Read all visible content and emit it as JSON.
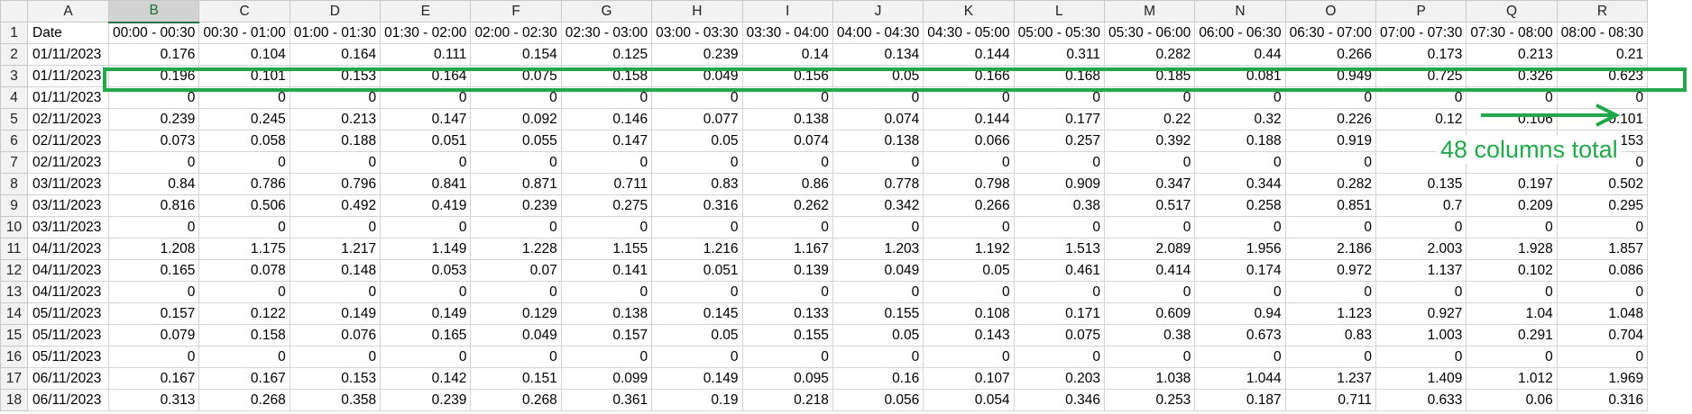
{
  "sheet": {
    "columns": [
      "A",
      "B",
      "C",
      "D",
      "E",
      "F",
      "G",
      "H",
      "I",
      "J",
      "K",
      "L",
      "M",
      "N",
      "O",
      "P",
      "Q",
      "R"
    ],
    "selected_column": "B",
    "header_row": [
      "Date",
      "00:00 - 00:30",
      "00:30 - 01:00",
      "01:00 - 01:30",
      "01:30 - 02:00",
      "02:00 - 02:30",
      "02:30 - 03:00",
      "03:00 - 03:30",
      "03:30 - 04:00",
      "04:00 - 04:30",
      "04:30 - 05:00",
      "05:00 - 05:30",
      "05:30 - 06:00",
      "06:00 - 06:30",
      "06:30 - 07:00",
      "07:00 - 07:30",
      "07:30 - 08:00",
      "08:00 - 08:30"
    ],
    "rows": [
      {
        "num": "2",
        "date": "01/11/2023",
        "values": [
          "0.176",
          "0.104",
          "0.164",
          "0.111",
          "0.154",
          "0.125",
          "0.239",
          "0.14",
          "0.134",
          "0.144",
          "0.311",
          "0.282",
          "0.44",
          "0.266",
          "0.173",
          "0.213",
          "0.21"
        ]
      },
      {
        "num": "3",
        "date": "01/11/2023",
        "values": [
          "0.196",
          "0.101",
          "0.153",
          "0.164",
          "0.075",
          "0.158",
          "0.049",
          "0.156",
          "0.05",
          "0.166",
          "0.168",
          "0.185",
          "0.081",
          "0.949",
          "0.725",
          "0.326",
          "0.623"
        ]
      },
      {
        "num": "4",
        "date": "01/11/2023",
        "values": [
          "0",
          "0",
          "0",
          "0",
          "0",
          "0",
          "0",
          "0",
          "0",
          "0",
          "0",
          "0",
          "0",
          "0",
          "0",
          "0",
          "0"
        ]
      },
      {
        "num": "5",
        "date": "02/11/2023",
        "values": [
          "0.239",
          "0.245",
          "0.213",
          "0.147",
          "0.092",
          "0.146",
          "0.077",
          "0.138",
          "0.074",
          "0.144",
          "0.177",
          "0.22",
          "0.32",
          "0.226",
          "0.12",
          "0.106",
          "0.101"
        ]
      },
      {
        "num": "6",
        "date": "02/11/2023",
        "values": [
          "0.073",
          "0.058",
          "0.188",
          "0.051",
          "0.055",
          "0.147",
          "0.05",
          "0.074",
          "0.138",
          "0.066",
          "0.257",
          "0.392",
          "0.188",
          "0.919",
          "",
          "",
          "0.153"
        ]
      },
      {
        "num": "7",
        "date": "02/11/2023",
        "values": [
          "0",
          "0",
          "0",
          "0",
          "0",
          "0",
          "0",
          "0",
          "0",
          "0",
          "0",
          "0",
          "0",
          "0",
          "",
          "",
          "0"
        ]
      },
      {
        "num": "8",
        "date": "03/11/2023",
        "values": [
          "0.84",
          "0.786",
          "0.796",
          "0.841",
          "0.871",
          "0.711",
          "0.83",
          "0.86",
          "0.778",
          "0.798",
          "0.909",
          "0.347",
          "0.344",
          "0.282",
          "0.135",
          "0.197",
          "0.502"
        ]
      },
      {
        "num": "9",
        "date": "03/11/2023",
        "values": [
          "0.816",
          "0.506",
          "0.492",
          "0.419",
          "0.239",
          "0.275",
          "0.316",
          "0.262",
          "0.342",
          "0.266",
          "0.38",
          "0.517",
          "0.258",
          "0.851",
          "0.7",
          "0.209",
          "0.295"
        ]
      },
      {
        "num": "10",
        "date": "03/11/2023",
        "values": [
          "0",
          "0",
          "0",
          "0",
          "0",
          "0",
          "0",
          "0",
          "0",
          "0",
          "0",
          "0",
          "0",
          "0",
          "0",
          "0",
          "0"
        ]
      },
      {
        "num": "11",
        "date": "04/11/2023",
        "values": [
          "1.208",
          "1.175",
          "1.217",
          "1.149",
          "1.228",
          "1.155",
          "1.216",
          "1.167",
          "1.203",
          "1.192",
          "1.513",
          "2.089",
          "1.956",
          "2.186",
          "2.003",
          "1.928",
          "1.857"
        ]
      },
      {
        "num": "12",
        "date": "04/11/2023",
        "values": [
          "0.165",
          "0.078",
          "0.148",
          "0.053",
          "0.07",
          "0.141",
          "0.051",
          "0.139",
          "0.049",
          "0.05",
          "0.461",
          "0.414",
          "0.174",
          "0.972",
          "1.137",
          "0.102",
          "0.086"
        ]
      },
      {
        "num": "13",
        "date": "04/11/2023",
        "values": [
          "0",
          "0",
          "0",
          "0",
          "0",
          "0",
          "0",
          "0",
          "0",
          "0",
          "0",
          "0",
          "0",
          "0",
          "0",
          "0",
          "0"
        ]
      },
      {
        "num": "14",
        "date": "05/11/2023",
        "values": [
          "0.157",
          "0.122",
          "0.149",
          "0.149",
          "0.129",
          "0.138",
          "0.145",
          "0.133",
          "0.155",
          "0.108",
          "0.171",
          "0.609",
          "0.94",
          "1.123",
          "0.927",
          "1.04",
          "1.048"
        ]
      },
      {
        "num": "15",
        "date": "05/11/2023",
        "values": [
          "0.079",
          "0.158",
          "0.076",
          "0.165",
          "0.049",
          "0.157",
          "0.05",
          "0.155",
          "0.05",
          "0.143",
          "0.075",
          "0.38",
          "0.673",
          "0.83",
          "1.003",
          "0.291",
          "0.704"
        ]
      },
      {
        "num": "16",
        "date": "05/11/2023",
        "values": [
          "0",
          "0",
          "0",
          "0",
          "0",
          "0",
          "0",
          "0",
          "0",
          "0",
          "0",
          "0",
          "0",
          "0",
          "0",
          "0",
          "0"
        ]
      },
      {
        "num": "17",
        "date": "06/11/2023",
        "values": [
          "0.167",
          "0.167",
          "0.153",
          "0.142",
          "0.151",
          "0.099",
          "0.149",
          "0.095",
          "0.16",
          "0.107",
          "0.203",
          "1.038",
          "1.044",
          "1.237",
          "1.409",
          "1.012",
          "1.969"
        ]
      },
      {
        "num": "18",
        "date": "06/11/2023",
        "values": [
          "0.313",
          "0.268",
          "0.358",
          "0.239",
          "0.268",
          "0.361",
          "0.19",
          "0.218",
          "0.056",
          "0.054",
          "0.346",
          "0.253",
          "0.187",
          "0.711",
          "0.633",
          "0.06",
          "0.316"
        ]
      }
    ]
  },
  "annotation": {
    "text": "48 columns total",
    "color": "#22a84a"
  }
}
